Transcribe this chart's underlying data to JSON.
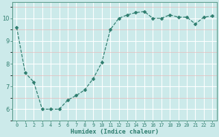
{
  "x": [
    0,
    1,
    2,
    3,
    4,
    5,
    6,
    7,
    8,
    9,
    10,
    11,
    12,
    13,
    14,
    15,
    16,
    17,
    18,
    19,
    20,
    21,
    22,
    23
  ],
  "y": [
    9.6,
    7.6,
    7.2,
    6.0,
    6.0,
    6.0,
    6.4,
    6.6,
    6.85,
    7.35,
    8.05,
    9.5,
    10.0,
    10.15,
    10.25,
    10.3,
    10.0,
    10.0,
    10.15,
    10.05,
    10.05,
    9.75,
    10.05,
    10.1
  ],
  "line_color": "#2e7d6e",
  "marker": "D",
  "marker_size": 2.5,
  "bg_color": "#cceaea",
  "grid_major_color": "#ffffff",
  "grid_minor_color": "#e8b8b8",
  "xlabel": "Humidex (Indice chaleur)",
  "xlabel_color": "#2e7d6e",
  "tick_color": "#2e7d6e",
  "axis_color": "#5a9a8a",
  "ylim": [
    5.5,
    10.7
  ],
  "xlim": [
    -0.5,
    23.5
  ],
  "yticks": [
    6,
    7,
    8,
    9,
    10
  ],
  "xticks": [
    0,
    1,
    2,
    3,
    4,
    5,
    6,
    7,
    8,
    9,
    10,
    11,
    12,
    13,
    14,
    15,
    16,
    17,
    18,
    19,
    20,
    21,
    22,
    23
  ]
}
